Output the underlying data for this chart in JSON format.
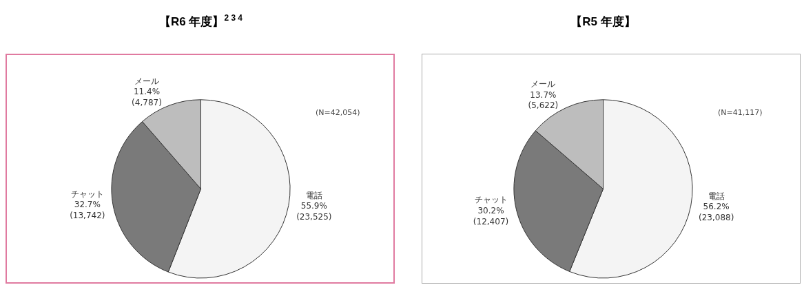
{
  "chart_data": [
    {
      "type": "pie",
      "title": "【R6 年度】$^{2 3 4}$",
      "categories": [
        "電話",
        "チャット",
        "メール"
      ],
      "values": [
        23525,
        13742,
        4787
      ],
      "colors": [
        "#f4f4f4",
        "#7a7a7a",
        "#bdbdbd"
      ],
      "value_labels": [
        "55.9%\n(23,525)",
        "32.7%\n(13,742)",
        "11.4%\n(4,787)"
      ],
      "annotations": [
        "(N=42,054)"
      ]
    },
    {
      "type": "pie",
      "title": "【R5 年度】",
      "categories": [
        "電話",
        "チャット",
        "メール"
      ],
      "values": [
        23088,
        12407,
        5622
      ],
      "colors": [
        "#f4f4f4",
        "#7a7a7a",
        "#bdbdbd"
      ],
      "value_labels": [
        "56.2%\n(23,088)",
        "30.2%\n(12,407)",
        "13.7%\n(5,622)"
      ],
      "annotations": [
        "(N=41,117)"
      ]
    }
  ]
}
